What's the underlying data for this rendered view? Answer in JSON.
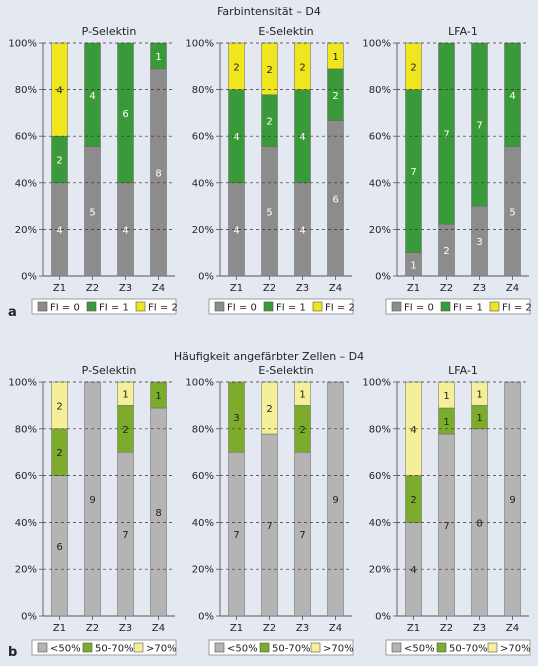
{
  "colors": {
    "background": "#e4e9f1",
    "a": {
      "fi0": "#8c8c8c",
      "fi1": "#3a9a3a",
      "fi2": "#f0e61e"
    },
    "b": {
      "lt50": "#b4b4b4",
      "mid": "#7dac2c",
      "gt70": "#f6ef9a"
    }
  },
  "panels": [
    {
      "letter": "a",
      "title": "Farbintensität – D4",
      "legend": [
        {
          "key": "fi0",
          "label": "FI = 0"
        },
        {
          "key": "fi1",
          "label": "FI = 1"
        },
        {
          "key": "fi2",
          "label": "FI = 2"
        }
      ]
    },
    {
      "letter": "b",
      "title": "Häufigkeit angefärbter Zellen – D4",
      "legend": [
        {
          "key": "lt50",
          "label": "<50%"
        },
        {
          "key": "mid",
          "label": "50-70%"
        },
        {
          "key": "gt70",
          "label": ">70%"
        }
      ]
    }
  ],
  "chart_data": [
    {
      "type": "bar",
      "stacked": true,
      "panel": "a",
      "title": "P-Selektin",
      "categories": [
        "Z1",
        "Z2",
        "Z3",
        "Z4"
      ],
      "ylim": [
        0,
        100
      ],
      "yticks": [
        "0%",
        "20%",
        "40%",
        "60%",
        "80%",
        "100%"
      ],
      "series": [
        {
          "key": "fi0",
          "name": "FI = 0",
          "values": [
            4,
            5,
            4,
            8
          ]
        },
        {
          "key": "fi1",
          "name": "FI = 1",
          "values": [
            2,
            4,
            6,
            1
          ]
        },
        {
          "key": "fi2",
          "name": "FI = 2",
          "values": [
            4,
            0,
            0,
            0
          ]
        }
      ]
    },
    {
      "type": "bar",
      "stacked": true,
      "panel": "a",
      "title": "E-Selektin",
      "categories": [
        "Z1",
        "Z2",
        "Z3",
        "Z4"
      ],
      "ylim": [
        0,
        100
      ],
      "yticks": [
        "0%",
        "20%",
        "40%",
        "60%",
        "80%",
        "100%"
      ],
      "series": [
        {
          "key": "fi0",
          "name": "FI = 0",
          "values": [
            4,
            5,
            4,
            6
          ]
        },
        {
          "key": "fi1",
          "name": "FI = 1",
          "values": [
            4,
            2,
            4,
            2
          ]
        },
        {
          "key": "fi2",
          "name": "FI = 2",
          "values": [
            2,
            2,
            2,
            1
          ]
        }
      ]
    },
    {
      "type": "bar",
      "stacked": true,
      "panel": "a",
      "title": "LFA-1",
      "categories": [
        "Z1",
        "Z2",
        "Z3",
        "Z4"
      ],
      "ylim": [
        0,
        100
      ],
      "yticks": [
        "0%",
        "20%",
        "40%",
        "60%",
        "80%",
        "100%"
      ],
      "series": [
        {
          "key": "fi0",
          "name": "FI = 0",
          "values": [
            1,
            2,
            3,
            5
          ]
        },
        {
          "key": "fi1",
          "name": "FI = 1",
          "values": [
            7,
            7,
            7,
            4
          ]
        },
        {
          "key": "fi2",
          "name": "FI = 2",
          "values": [
            2,
            0,
            0,
            0
          ]
        }
      ]
    },
    {
      "type": "bar",
      "stacked": true,
      "panel": "b",
      "title": "P-Selektin",
      "categories": [
        "Z1",
        "Z2",
        "Z3",
        "Z4"
      ],
      "ylim": [
        0,
        100
      ],
      "yticks": [
        "0%",
        "20%",
        "40%",
        "60%",
        "80%",
        "100%"
      ],
      "series": [
        {
          "key": "lt50",
          "name": "<50%",
          "values": [
            6,
            9,
            7,
            8
          ]
        },
        {
          "key": "mid",
          "name": "50-70%",
          "values": [
            2,
            0,
            2,
            1
          ]
        },
        {
          "key": "gt70",
          "name": ">70%",
          "values": [
            2,
            0,
            1,
            0
          ]
        }
      ]
    },
    {
      "type": "bar",
      "stacked": true,
      "panel": "b",
      "title": "E-Selektin",
      "categories": [
        "Z1",
        "Z2",
        "Z3",
        "Z4"
      ],
      "ylim": [
        0,
        100
      ],
      "yticks": [
        "0%",
        "20%",
        "40%",
        "60%",
        "80%",
        "100%"
      ],
      "series": [
        {
          "key": "lt50",
          "name": "<50%",
          "values": [
            7,
            7,
            7,
            9
          ]
        },
        {
          "key": "mid",
          "name": "50-70%",
          "values": [
            3,
            0,
            2,
            0
          ]
        },
        {
          "key": "gt70",
          "name": ">70%",
          "values": [
            0,
            2,
            1,
            0
          ]
        }
      ]
    },
    {
      "type": "bar",
      "stacked": true,
      "panel": "b",
      "title": "LFA-1",
      "categories": [
        "Z1",
        "Z2",
        "Z3",
        "Z4"
      ],
      "ylim": [
        0,
        100
      ],
      "yticks": [
        "0%",
        "20%",
        "40%",
        "60%",
        "80%",
        "100%"
      ],
      "series": [
        {
          "key": "lt50",
          "name": "<50%",
          "values": [
            4,
            7,
            8,
            9
          ]
        },
        {
          "key": "mid",
          "name": "50-70%",
          "values": [
            2,
            1,
            1,
            0
          ]
        },
        {
          "key": "gt70",
          "name": ">70%",
          "values": [
            4,
            1,
            1,
            0
          ]
        }
      ]
    }
  ]
}
